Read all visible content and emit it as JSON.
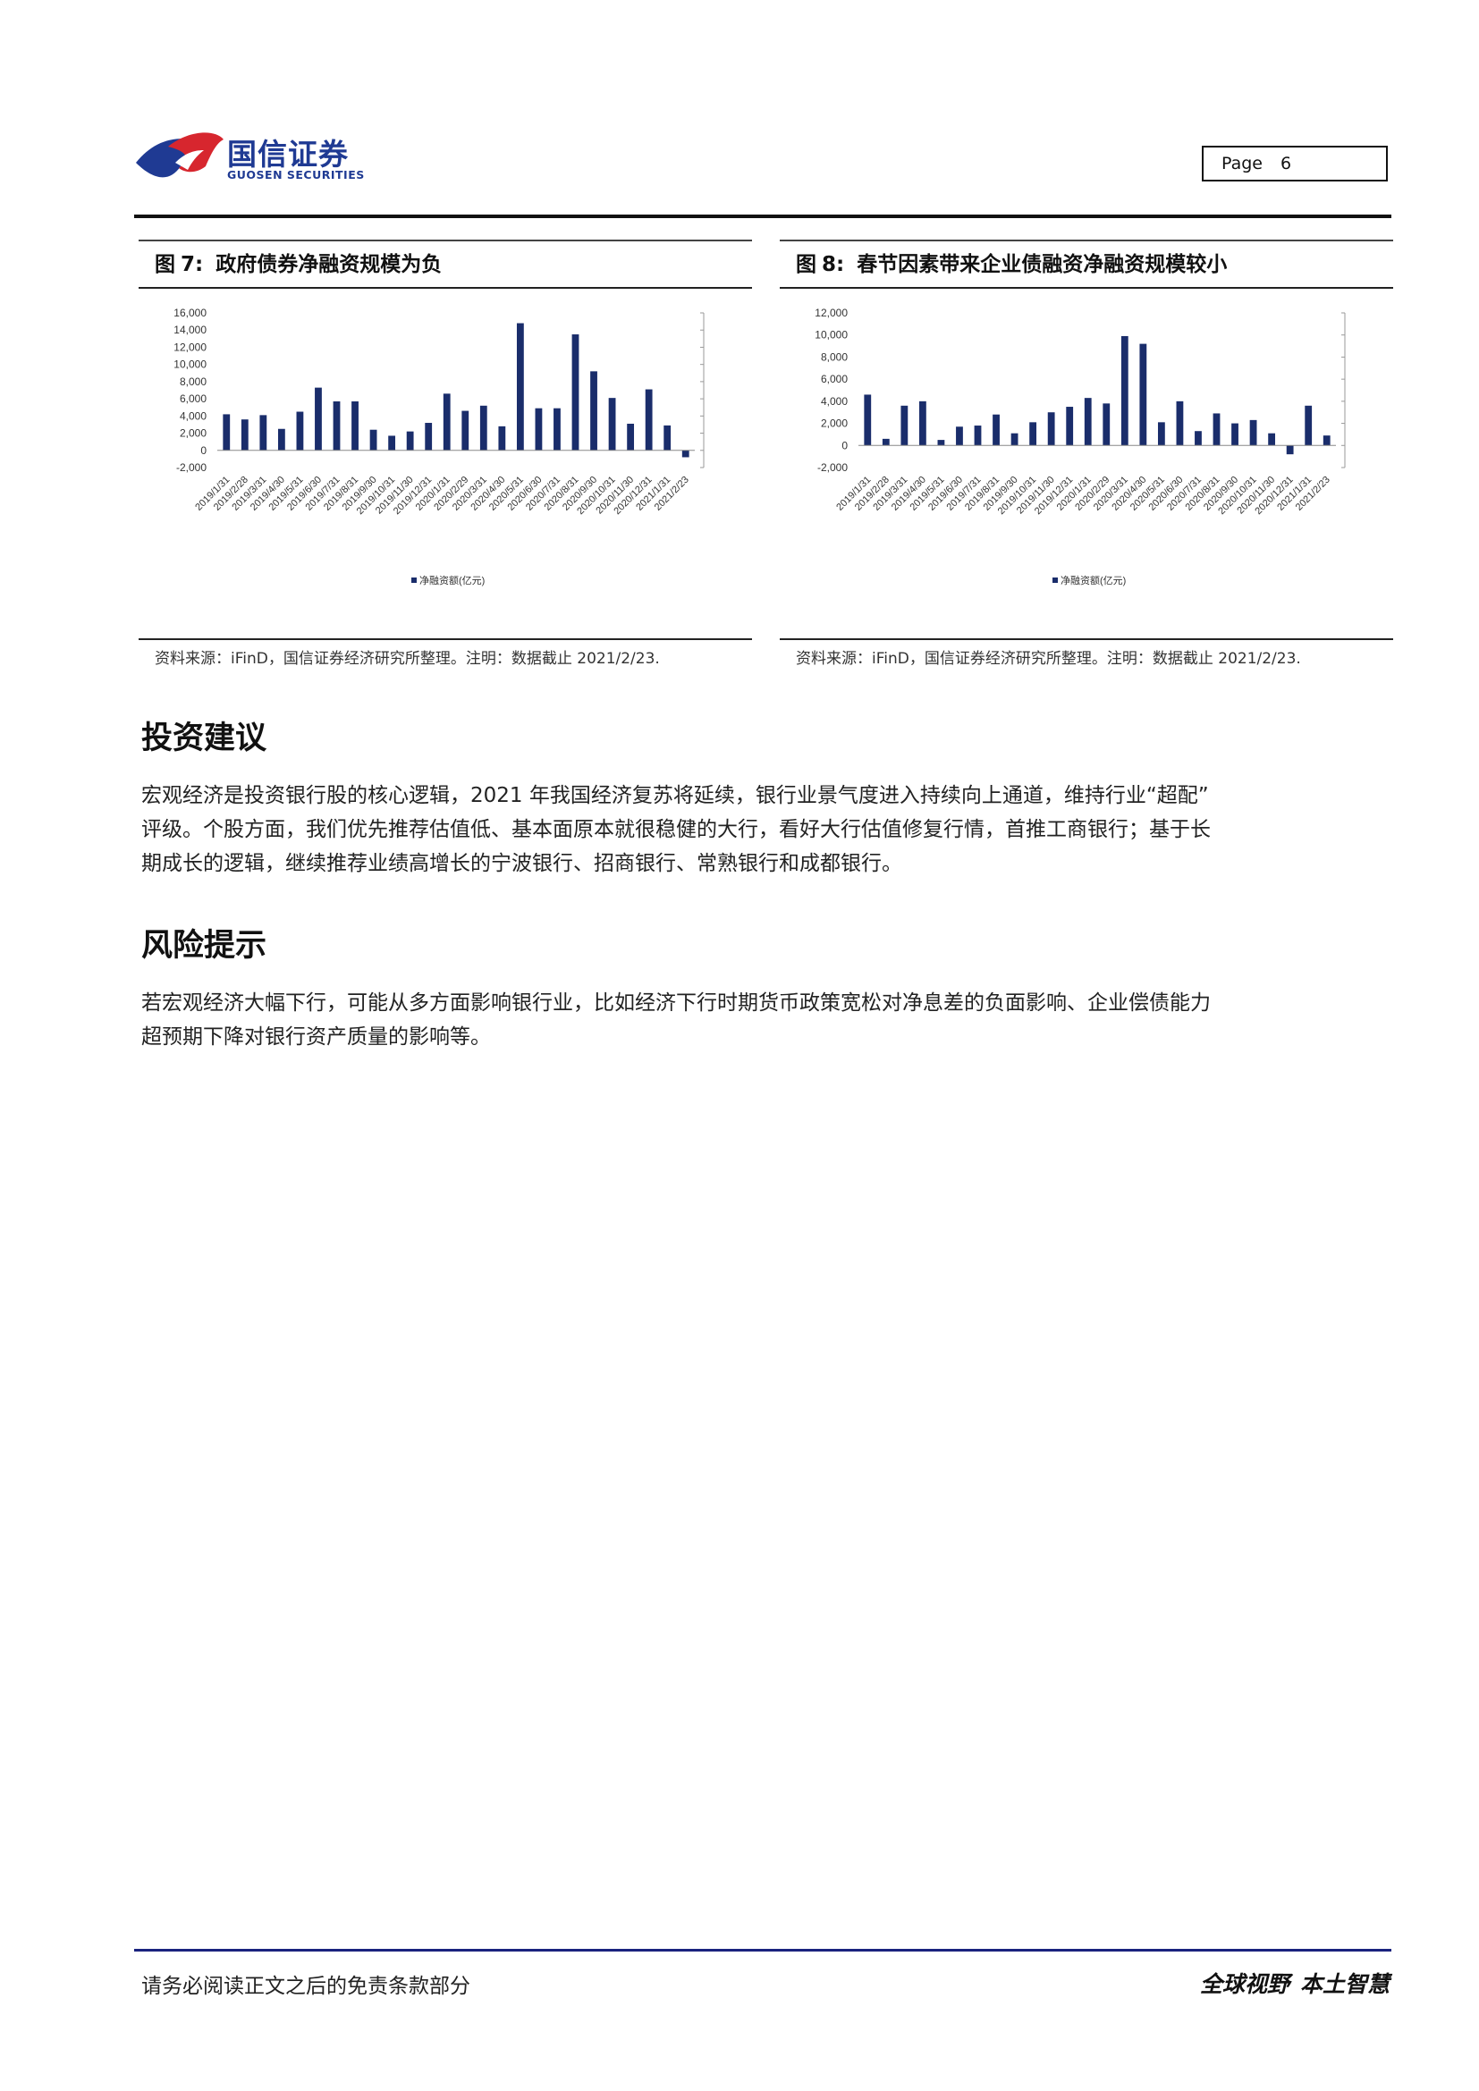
{
  "header": {
    "brand_cn": "国信证券",
    "brand_en": "GUOSEN SECURITIES",
    "page_label": "Page",
    "page_number": "6",
    "logo_colors": {
      "red": "#d7262e",
      "blue": "#1f3a93",
      "text": "#1f3a93"
    }
  },
  "figures": [
    {
      "label": "图",
      "number": "7:",
      "title": "政府债券净融资规模为负",
      "source": "资料来源：iFinD，国信证券经济研究所整理。注明：数据截止 2021/2/23.",
      "chart_data": {
        "type": "bar",
        "categories": [
          "2019/1/31",
          "2019/2/28",
          "2019/3/31",
          "2019/4/30",
          "2019/5/31",
          "2019/6/30",
          "2019/7/31",
          "2019/8/31",
          "2019/9/30",
          "2019/10/31",
          "2019/11/30",
          "2019/12/31",
          "2020/1/31",
          "2020/2/29",
          "2020/3/31",
          "2020/4/30",
          "2020/5/31",
          "2020/6/30",
          "2020/7/31",
          "2020/8/31",
          "2020/9/30",
          "2020/10/31",
          "2020/11/30",
          "2020/12/31",
          "2021/1/31",
          "2021/2/23"
        ],
        "tick_labels": [
          "2019/1/31",
          "2019/2/28",
          "2019/3/31",
          "2019/4/30",
          "2019/5/31",
          "2019/6/30",
          "2019/7/31",
          "2019/8/31",
          "2019/9/30",
          "2019/10/31",
          "2019/11/30",
          "2019/12/31",
          "2020/1/31",
          "2020/2/29",
          "2020/3/31",
          "2020/4/30",
          "2020/5/31",
          "2020/6/30",
          "2020/7/31",
          "2020/8/31",
          "2020/9/30",
          "2020/10/31",
          "2020/11/30",
          "2020/12/31",
          "2021/1/31",
          "2021/2/23"
        ],
        "series": [
          {
            "name": "净融资额(亿元)",
            "values": [
              4200,
              3600,
              4100,
              2500,
              4500,
              7300,
              5700,
              5700,
              2400,
              1700,
              2200,
              3200,
              6600,
              4600,
              5200,
              2800,
              14800,
              4900,
              4900,
              13500,
              9200,
              6100,
              3100,
              7100,
              2900,
              -800
            ]
          }
        ],
        "ylim": [
          -2000,
          16000
        ],
        "yticks": [
          "-2,000",
          "0",
          "2,000",
          "4,000",
          "6,000",
          "8,000",
          "10,000",
          "12,000",
          "14,000",
          "16,000"
        ],
        "ytick_values": [
          -2000,
          0,
          2000,
          4000,
          6000,
          8000,
          10000,
          12000,
          14000,
          16000
        ],
        "legend_position": "bottom",
        "color": "#1a2d6b"
      }
    },
    {
      "label": "图",
      "number": "8:",
      "title": "春节因素带来企业债融资净融资规模较小",
      "source": "资料来源：iFinD，国信证券经济研究所整理。注明：数据截止 2021/2/23.",
      "chart_data": {
        "type": "bar",
        "categories": [
          "2019/1/31",
          "2019/2/28",
          "2019/3/31",
          "2019/4/30",
          "2019/5/31",
          "2019/6/30",
          "2019/7/31",
          "2019/8/31",
          "2019/9/30",
          "2019/10/31",
          "2019/11/30",
          "2019/12/31",
          "2020/1/31",
          "2020/2/29",
          "2020/3/31",
          "2020/4/30",
          "2020/5/31",
          "2020/6/30",
          "2020/7/31",
          "2020/8/31",
          "2020/9/30",
          "2020/10/31",
          "2020/11/30",
          "2020/12/31",
          "2021/1/31",
          "2021/2/23"
        ],
        "tick_labels": [
          "2019/1/31",
          "2019/2/28",
          "2019/3/31",
          "2019/4/30",
          "2019/5/31",
          "2019/6/30",
          "2019/7/31",
          "2019/8/31",
          "2019/9/30",
          "2019/10/31",
          "2019/11/30",
          "2019/12/31",
          "2020/1/31",
          "2020/2/29",
          "2020/3/31",
          "2020/4/30",
          "2020/5/31",
          "2020/6/30",
          "2020/7/31",
          "2020/8/31",
          "2020/9/30",
          "2020/10/31",
          "2020/11/30",
          "2020/12/31",
          "2021/1/31",
          "2021/2/23"
        ],
        "series": [
          {
            "name": "净融资额(亿元)",
            "values": [
              4600,
              600,
              3600,
              4000,
              500,
              1700,
              1800,
              2800,
              1100,
              2100,
              3000,
              3500,
              4300,
              3800,
              9900,
              9200,
              2100,
              4000,
              1300,
              2900,
              2000,
              2300,
              1100,
              -800,
              3600,
              900
            ]
          }
        ],
        "ylim": [
          -2000,
          12000
        ],
        "yticks": [
          "-2,000",
          "0",
          "2,000",
          "4,000",
          "6,000",
          "8,000",
          "10,000",
          "12,000"
        ],
        "ytick_values": [
          -2000,
          0,
          2000,
          4000,
          6000,
          8000,
          10000,
          12000
        ],
        "legend_position": "bottom",
        "color": "#1a2d6b"
      }
    }
  ],
  "sections": {
    "invest": {
      "heading": "投资建议",
      "lines": [
        "宏观经济是投资银行股的核心逻辑，2021 年我国经济复苏将延续，银行业景气度进入持续向上通道，维持行业“超配”",
        "评级。个股方面，我们优先推荐估值低、基本面原本就很稳健的大行，看好大行估值修复行情，首推工商银行；基于长",
        "期成长的逻辑，继续推荐业绩高增长的宁波银行、招商银行、常熟银行和成都银行。"
      ]
    },
    "risk": {
      "heading": "风险提示",
      "lines": [
        "若宏观经济大幅下行，可能从多方面影响银行业，比如经济下行时期货币政策宽松对净息差的负面影响、企业偿债能力",
        "超预期下降对银行资产质量的影响等。"
      ]
    }
  },
  "footer": {
    "disclaimer": "请务必阅读正文之后的免责条款部分",
    "slogan_1": "全球视野",
    "slogan_2": "本土智慧"
  }
}
